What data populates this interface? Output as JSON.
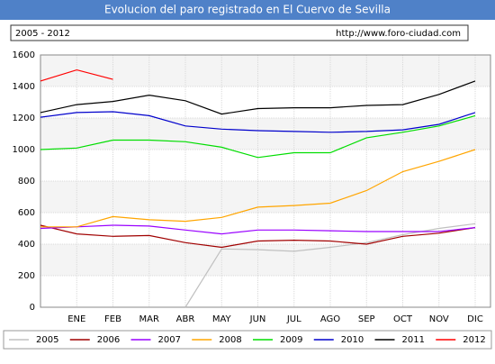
{
  "chart_data": {
    "type": "line",
    "title": "Evolucion del paro registrado en El Cuervo de Sevilla",
    "subtitle": "2005 - 2012",
    "source": "http://www.foro-ciudad.com",
    "categories": [
      null,
      "ENE",
      "FEB",
      "MAR",
      "ABR",
      "MAY",
      "JUN",
      "JUL",
      "AGO",
      "SEP",
      "OCT",
      "NOV",
      "DIC"
    ],
    "series": [
      {
        "name": "2005",
        "color": "#c0c0c0",
        "values": [
          null,
          null,
          null,
          null,
          0,
          370,
          365,
          355,
          380,
          410,
          460,
          500,
          530
        ]
      },
      {
        "name": "2006",
        "color": "#a00000",
        "values": [
          520,
          465,
          450,
          455,
          410,
          380,
          420,
          425,
          420,
          400,
          450,
          470,
          505
        ]
      },
      {
        "name": "2007",
        "color": "#9900ff",
        "values": [
          500,
          510,
          520,
          515,
          490,
          465,
          490,
          490,
          485,
          480,
          480,
          480,
          505
        ]
      },
      {
        "name": "2008",
        "color": "#ffa500",
        "values": [
          510,
          510,
          575,
          555,
          545,
          570,
          635,
          645,
          660,
          740,
          860,
          925,
          1000
        ]
      },
      {
        "name": "2009",
        "color": "#00dd00",
        "values": [
          1000,
          1010,
          1060,
          1060,
          1050,
          1015,
          950,
          980,
          980,
          1075,
          1110,
          1150,
          1215
        ]
      },
      {
        "name": "2010",
        "color": "#0000cc",
        "values": [
          1205,
          1235,
          1240,
          1215,
          1150,
          1130,
          1120,
          1115,
          1110,
          1115,
          1125,
          1160,
          1235
        ]
      },
      {
        "name": "2011",
        "color": "#000000",
        "values": [
          1235,
          1285,
          1305,
          1345,
          1310,
          1225,
          1260,
          1265,
          1265,
          1280,
          1285,
          1350,
          1435
        ]
      },
      {
        "name": "2012",
        "color": "#ff0000",
        "values": [
          1435,
          1505,
          1445,
          null,
          null,
          null,
          null,
          null,
          null,
          null,
          null,
          null,
          null
        ]
      }
    ],
    "ylim": [
      0,
      1600
    ],
    "yticks": [
      0,
      200,
      400,
      600,
      800,
      1000,
      1200,
      1400,
      1600
    ],
    "grid": true
  }
}
